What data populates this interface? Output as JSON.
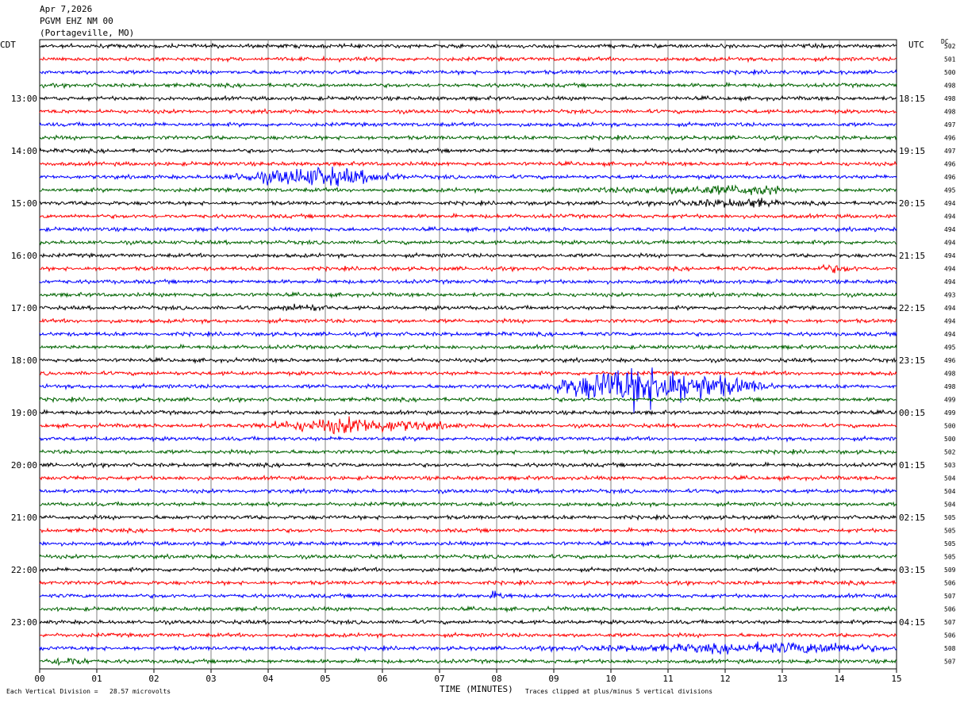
{
  "header": {
    "date": "Apr 7,2026",
    "station": "PGVM EHZ NM 00",
    "location": "(Portageville, MO)"
  },
  "left_axis_label": "CDT",
  "right_axis_label": "UTC",
  "dc_label": "DC",
  "footer": {
    "scale_note": "Each Vertical Division =   28.57 microvolts",
    "clip_note": "Traces clipped at plus/minus 5 vertical divisions"
  },
  "colors": {
    "trace_cycle": [
      "#000000",
      "#ff0000",
      "#0000ff",
      "#006400"
    ],
    "grid": "#808080"
  },
  "chart_data": {
    "type": "line",
    "title": "",
    "xlabel": "TIME (MINUTES)",
    "ylabel": "",
    "xlim": [
      0,
      15
    ],
    "x_ticks": [
      "00",
      "01",
      "02",
      "03",
      "04",
      "05",
      "06",
      "07",
      "08",
      "09",
      "10",
      "11",
      "12",
      "13",
      "14",
      "15"
    ],
    "row_count": 48,
    "cdt_labels": [
      {
        "row": 4,
        "label": "13:00"
      },
      {
        "row": 8,
        "label": "14:00"
      },
      {
        "row": 12,
        "label": "15:00"
      },
      {
        "row": 16,
        "label": "16:00"
      },
      {
        "row": 20,
        "label": "17:00"
      },
      {
        "row": 24,
        "label": "18:00"
      },
      {
        "row": 28,
        "label": "19:00"
      },
      {
        "row": 32,
        "label": "20:00"
      },
      {
        "row": 36,
        "label": "21:00"
      },
      {
        "row": 40,
        "label": "22:00"
      },
      {
        "row": 44,
        "label": "23:00"
      }
    ],
    "utc_labels": [
      {
        "row": 4,
        "label": "18:15"
      },
      {
        "row": 8,
        "label": "19:15"
      },
      {
        "row": 12,
        "label": "20:15"
      },
      {
        "row": 16,
        "label": "21:15"
      },
      {
        "row": 20,
        "label": "22:15"
      },
      {
        "row": 24,
        "label": "23:15"
      },
      {
        "row": 28,
        "label": "00:15"
      },
      {
        "row": 32,
        "label": "01:15"
      },
      {
        "row": 36,
        "label": "02:15"
      },
      {
        "row": 40,
        "label": "03:15"
      },
      {
        "row": 44,
        "label": "04:15"
      }
    ],
    "dc_values": [
      "502",
      "501",
      "500",
      "498",
      "498",
      "498",
      "497",
      "496",
      "497",
      "496",
      "496",
      "495",
      "494",
      "494",
      "494",
      "494",
      "494",
      "494",
      "494",
      "493",
      "494",
      "494",
      "494",
      "495",
      "496",
      "498",
      "498",
      "499",
      "499",
      "500",
      "500",
      "502",
      "503",
      "504",
      "504",
      "504",
      "505",
      "505",
      "505",
      "505",
      "509",
      "506",
      "507",
      "506",
      "507",
      "506",
      "508",
      "507"
    ],
    "events": [
      {
        "row": 10,
        "start_min": 3.0,
        "end_min": 6.5,
        "peak_min": 4.9,
        "amp": 2.6
      },
      {
        "row": 11,
        "start_min": 9.2,
        "end_min": 13.0,
        "peak_min": 12.8,
        "amp": 1.2
      },
      {
        "row": 12,
        "start_min": 10.5,
        "end_min": 13.0,
        "peak_min": 12.6,
        "amp": 1.0
      },
      {
        "row": 17,
        "start_min": 13.5,
        "end_min": 14.5,
        "peak_min": 13.8,
        "amp": 0.8
      },
      {
        "row": 20,
        "start_min": 4.0,
        "end_min": 5.2,
        "peak_min": 4.6,
        "amp": 0.8
      },
      {
        "row": 26,
        "start_min": 8.6,
        "end_min": 13.0,
        "peak_min": 10.5,
        "amp": 6.0
      },
      {
        "row": 29,
        "start_min": 3.5,
        "end_min": 7.5,
        "peak_min": 5.5,
        "amp": 2.0
      },
      {
        "row": 42,
        "start_min": 7.8,
        "end_min": 8.3,
        "peak_min": 8.0,
        "amp": 0.9
      },
      {
        "row": 46,
        "start_min": 8.5,
        "end_min": 15.0,
        "peak_min": 13.8,
        "amp": 1.3
      },
      {
        "row": 47,
        "start_min": 0.0,
        "end_min": 1.0,
        "peak_min": 0.5,
        "amp": 1.0
      }
    ]
  }
}
